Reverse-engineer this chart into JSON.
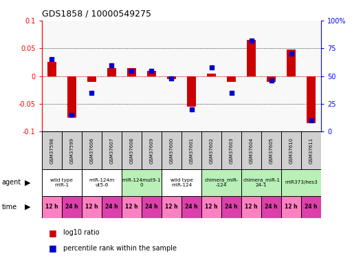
{
  "title": "GDS1858 / 10000549275",
  "samples": [
    "GSM37598",
    "GSM37599",
    "GSM37606",
    "GSM37607",
    "GSM37608",
    "GSM37609",
    "GSM37600",
    "GSM37601",
    "GSM37602",
    "GSM37603",
    "GSM37604",
    "GSM37605",
    "GSM37610",
    "GSM37611"
  ],
  "log10_ratio": [
    0.025,
    -0.075,
    -0.01,
    0.015,
    0.015,
    0.01,
    -0.005,
    -0.055,
    0.005,
    -0.01,
    0.065,
    -0.01,
    0.048,
    -0.085
  ],
  "percentile": [
    65,
    15,
    35,
    60,
    55,
    55,
    48,
    20,
    58,
    35,
    82,
    46,
    70,
    10
  ],
  "agents": [
    {
      "label": "wild type\nmiR-1",
      "cols": [
        0,
        1
      ],
      "color": "#ffffff"
    },
    {
      "label": "miR-124m\nut5-6",
      "cols": [
        2,
        3
      ],
      "color": "#ffffff"
    },
    {
      "label": "miR-124mut9-1\n0",
      "cols": [
        4,
        5
      ],
      "color": "#b8f0b8"
    },
    {
      "label": "wild type\nmiR-124",
      "cols": [
        6,
        7
      ],
      "color": "#ffffff"
    },
    {
      "label": "chimera_miR-\n-124",
      "cols": [
        8,
        9
      ],
      "color": "#b8f0b8"
    },
    {
      "label": "chimera_miR-1\n24-1",
      "cols": [
        10,
        11
      ],
      "color": "#b8f0b8"
    },
    {
      "label": "miR373/hes3",
      "cols": [
        12,
        13
      ],
      "color": "#b8f0b8"
    }
  ],
  "time_color_1": "#ff80c0",
  "time_color_2": "#dd40aa",
  "ylim_left": [
    -0.1,
    0.1
  ],
  "ylim_right": [
    0,
    100
  ],
  "bar_color": "#cc0000",
  "dot_color": "#0000cc",
  "sample_box_color": "#d0d0d0",
  "bg_color": "#f8f8f8"
}
